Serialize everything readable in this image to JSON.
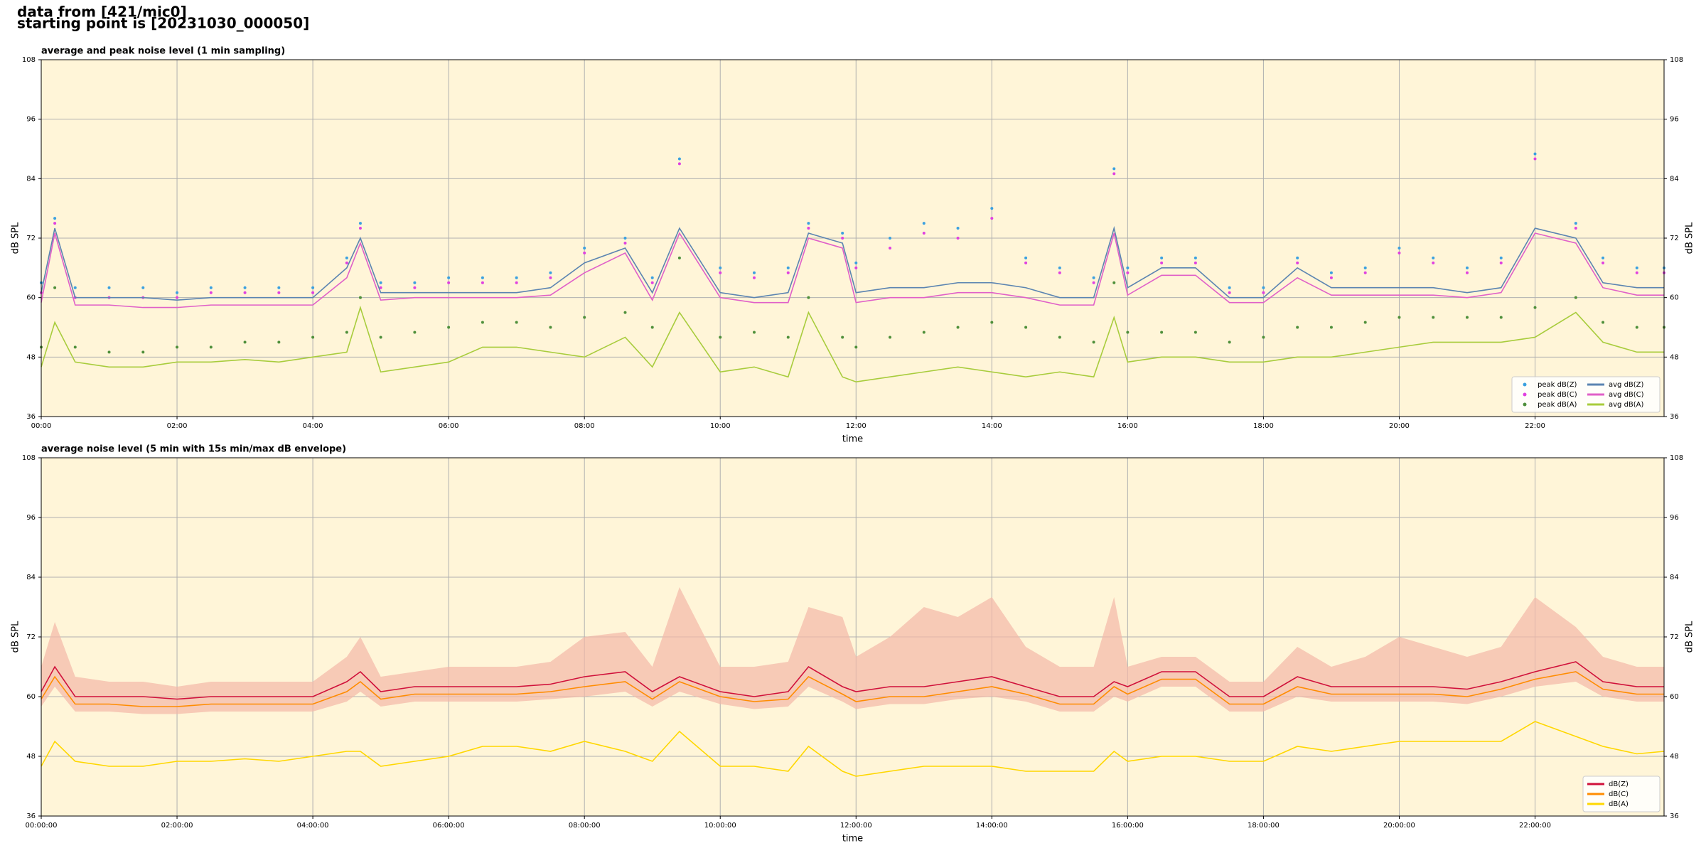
{
  "header": {
    "lines": [
      "data from [421/mic0]",
      "starting point is [20231030_000050]"
    ]
  },
  "chart_data": [
    {
      "type": "line",
      "title": "average and peak noise level (1 min sampling)",
      "x_label": "time",
      "y_label": "dB SPL",
      "background": "#fff5d8",
      "grid": true,
      "legend": "lower right",
      "legend_columns": 2,
      "xlim": [
        0,
        23.9
      ],
      "ylim": [
        36,
        108
      ],
      "yticks": [
        36,
        48,
        60,
        72,
        84,
        96,
        108
      ],
      "xticks": [
        {
          "value": 0,
          "label": "00:00"
        },
        {
          "value": 2,
          "label": "02:00"
        },
        {
          "value": 4,
          "label": "04:00"
        },
        {
          "value": 6,
          "label": "06:00"
        },
        {
          "value": 8,
          "label": "08:00"
        },
        {
          "value": 10,
          "label": "10:00"
        },
        {
          "value": 12,
          "label": "12:00"
        },
        {
          "value": 14,
          "label": "14:00"
        },
        {
          "value": 16,
          "label": "16:00"
        },
        {
          "value": 18,
          "label": "18:00"
        },
        {
          "value": 20,
          "label": "20:00"
        },
        {
          "value": 22,
          "label": "22:00"
        }
      ],
      "x": [
        0,
        0.2,
        0.5,
        1,
        1.5,
        2,
        2.5,
        3,
        3.5,
        4,
        4.5,
        4.7,
        5,
        5.5,
        6,
        6.5,
        7,
        7.5,
        8,
        8.6,
        9,
        9.4,
        10,
        10.5,
        11,
        11.3,
        11.8,
        12,
        12.5,
        13,
        13.5,
        14,
        14.5,
        15,
        15.5,
        15.8,
        16,
        16.5,
        17,
        17.5,
        18,
        18.5,
        19,
        19.5,
        20,
        20.5,
        21,
        21.5,
        22,
        22.6,
        23,
        23.5,
        23.9
      ],
      "series": [
        {
          "name": "peak dB(Z)",
          "color": "#3aa0e0",
          "style": "points",
          "values": [
            63,
            76,
            62,
            62,
            62,
            61,
            62,
            62,
            62,
            62,
            68,
            75,
            63,
            63,
            64,
            64,
            64,
            65,
            70,
            72,
            64,
            88,
            66,
            65,
            66,
            75,
            73,
            67,
            72,
            75,
            74,
            78,
            68,
            66,
            64,
            86,
            66,
            68,
            68,
            62,
            62,
            68,
            65,
            66,
            70,
            68,
            66,
            68,
            89,
            75,
            68,
            66,
            66
          ]
        },
        {
          "name": "peak dB(C)",
          "color": "#e040e0",
          "style": "points",
          "values": [
            61,
            75,
            60,
            60,
            60,
            60,
            61,
            61,
            61,
            61,
            67,
            74,
            62,
            62,
            63,
            63,
            63,
            64,
            69,
            71,
            63,
            87,
            65,
            64,
            65,
            74,
            72,
            66,
            70,
            73,
            72,
            76,
            67,
            65,
            63,
            85,
            65,
            67,
            67,
            61,
            61,
            67,
            64,
            65,
            69,
            67,
            65,
            67,
            88,
            74,
            67,
            65,
            65
          ]
        },
        {
          "name": "peak dB(A)",
          "color": "#4e8f3a",
          "style": "points",
          "values": [
            50,
            62,
            50,
            49,
            49,
            50,
            50,
            51,
            51,
            52,
            53,
            60,
            52,
            53,
            54,
            55,
            55,
            54,
            56,
            57,
            54,
            68,
            52,
            53,
            52,
            60,
            52,
            50,
            52,
            53,
            54,
            55,
            54,
            52,
            51,
            63,
            53,
            53,
            53,
            51,
            52,
            54,
            54,
            55,
            56,
            56,
            56,
            56,
            58,
            60,
            55,
            54,
            54
          ]
        },
        {
          "name": "avg dB(Z)",
          "color": "#5b84b1",
          "style": "line",
          "values": [
            61,
            74,
            60,
            60,
            60,
            59.5,
            60,
            60,
            60,
            60,
            66,
            72,
            61,
            61,
            61,
            61,
            61,
            62,
            67,
            70,
            61,
            74,
            61,
            60,
            61,
            73,
            71,
            61,
            62,
            62,
            63,
            63,
            62,
            60,
            60,
            74,
            62,
            66,
            66,
            60,
            60,
            66,
            62,
            62,
            62,
            62,
            61,
            62,
            74,
            72,
            63,
            62,
            62
          ]
        },
        {
          "name": "avg dB(C)",
          "color": "#e060c8",
          "style": "line",
          "values": [
            59,
            73,
            58.5,
            58.5,
            58,
            58,
            58.5,
            58.5,
            58.5,
            58.5,
            64,
            71,
            59.5,
            60,
            60,
            60,
            60,
            60.5,
            65,
            69,
            59.5,
            73,
            60,
            59,
            59,
            72,
            70,
            59,
            60,
            60,
            61,
            61,
            60,
            58.5,
            58.5,
            73,
            60.5,
            64.5,
            64.5,
            59,
            59,
            64,
            60.5,
            60.5,
            60.5,
            60.5,
            60,
            61,
            73,
            71,
            62,
            60.5,
            60.5
          ]
        },
        {
          "name": "avg dB(A)",
          "color": "#a8cc3c",
          "style": "line",
          "values": [
            46,
            55,
            47,
            46,
            46,
            47,
            47,
            47.5,
            47,
            48,
            49,
            58,
            45,
            46,
            47,
            50,
            50,
            49,
            48,
            52,
            46,
            57,
            45,
            46,
            44,
            57,
            44,
            43,
            44,
            45,
            46,
            45,
            44,
            45,
            44,
            56,
            47,
            48,
            48,
            47,
            47,
            48,
            48,
            49,
            50,
            51,
            51,
            51,
            52,
            57,
            51,
            49,
            49
          ]
        }
      ]
    },
    {
      "type": "line",
      "title": "average noise level (5 min with 15s min/max dB envelope)",
      "x_label": "time",
      "y_label": "dB SPL",
      "background": "#fff5d8",
      "grid": true,
      "legend": "lower right",
      "legend_columns": 1,
      "xlim": [
        0,
        23.9
      ],
      "ylim": [
        36,
        108
      ],
      "yticks": [
        36,
        48,
        60,
        72,
        84,
        96,
        108
      ],
      "xticks": [
        {
          "value": 0,
          "label": "00:00:00"
        },
        {
          "value": 2,
          "label": "02:00:00"
        },
        {
          "value": 4,
          "label": "04:00:00"
        },
        {
          "value": 6,
          "label": "06:00:00"
        },
        {
          "value": 8,
          "label": "08:00:00"
        },
        {
          "value": 10,
          "label": "10:00:00"
        },
        {
          "value": 12,
          "label": "12:00:00"
        },
        {
          "value": 14,
          "label": "14:00:00"
        },
        {
          "value": 16,
          "label": "16:00:00"
        },
        {
          "value": 18,
          "label": "18:00:00"
        },
        {
          "value": 20,
          "label": "20:00:00"
        },
        {
          "value": 22,
          "label": "22:00:00"
        }
      ],
      "x": [
        0,
        0.2,
        0.5,
        1,
        1.5,
        2,
        2.5,
        3,
        3.5,
        4,
        4.5,
        4.7,
        5,
        5.5,
        6,
        6.5,
        7,
        7.5,
        8,
        8.6,
        9,
        9.4,
        10,
        10.5,
        11,
        11.3,
        11.8,
        12,
        12.5,
        13,
        13.5,
        14,
        14.5,
        15,
        15.5,
        15.8,
        16,
        16.5,
        17,
        17.5,
        18,
        18.5,
        19,
        19.5,
        20,
        20.5,
        21,
        21.5,
        22,
        22.6,
        23,
        23.5,
        23.9
      ],
      "envelope": {
        "color": "#f4b8a8",
        "high": [
          66,
          75,
          64,
          63,
          63,
          62,
          63,
          63,
          63,
          63,
          68,
          72,
          64,
          65,
          66,
          66,
          66,
          67,
          72,
          73,
          66,
          82,
          66,
          66,
          67,
          78,
          76,
          68,
          72,
          78,
          76,
          80,
          70,
          66,
          66,
          80,
          66,
          68,
          68,
          63,
          63,
          70,
          66,
          68,
          72,
          70,
          68,
          70,
          80,
          74,
          68,
          66,
          66
        ],
        "low": [
          58,
          62,
          57,
          57,
          56.5,
          56.5,
          57,
          57,
          57,
          57,
          59,
          61,
          58,
          59,
          59,
          59,
          59,
          59.5,
          60,
          61,
          58,
          61,
          58.5,
          57.5,
          58,
          62,
          59,
          57.5,
          58.5,
          58.5,
          59.5,
          60,
          59,
          57,
          57,
          60,
          59,
          62,
          62,
          57,
          57,
          60,
          59,
          59,
          59,
          59,
          58.5,
          60,
          62,
          63,
          60,
          59,
          59
        ]
      },
      "series": [
        {
          "name": "dB(Z)",
          "color": "#d0103a",
          "style": "line",
          "values": [
            61,
            66,
            60,
            60,
            60,
            59.5,
            60,
            60,
            60,
            60,
            63,
            65,
            61,
            62,
            62,
            62,
            62,
            62.5,
            64,
            65,
            61,
            64,
            61,
            60,
            61,
            66,
            62,
            61,
            62,
            62,
            63,
            64,
            62,
            60,
            60,
            63,
            62,
            65,
            65,
            60,
            60,
            64,
            62,
            62,
            62,
            62,
            61.5,
            63,
            65,
            67,
            63,
            62,
            62
          ]
        },
        {
          "name": "dB(C)",
          "color": "#ff8c00",
          "style": "line",
          "values": [
            59.5,
            64,
            58.5,
            58.5,
            58,
            58,
            58.5,
            58.5,
            58.5,
            58.5,
            61,
            63,
            59.5,
            60.5,
            60.5,
            60.5,
            60.5,
            61,
            62,
            63,
            59.5,
            63,
            60,
            59,
            59.5,
            64,
            60.5,
            59,
            60,
            60,
            61,
            62,
            60.5,
            58.5,
            58.5,
            62,
            60.5,
            63.5,
            63.5,
            58.5,
            58.5,
            62,
            60.5,
            60.5,
            60.5,
            60.5,
            60,
            61.5,
            63.5,
            65,
            61.5,
            60.5,
            60.5
          ]
        },
        {
          "name": "dB(A)",
          "color": "#ffd700",
          "style": "line",
          "values": [
            46,
            51,
            47,
            46,
            46,
            47,
            47,
            47.5,
            47,
            48,
            49,
            49,
            46,
            47,
            48,
            50,
            50,
            49,
            51,
            49,
            47,
            53,
            46,
            46,
            45,
            50,
            45,
            44,
            45,
            46,
            46,
            46,
            45,
            45,
            45,
            49,
            47,
            48,
            48,
            47,
            47,
            50,
            49,
            50,
            51,
            51,
            51,
            51,
            55,
            52,
            50,
            48.5,
            49
          ]
        }
      ]
    }
  ]
}
